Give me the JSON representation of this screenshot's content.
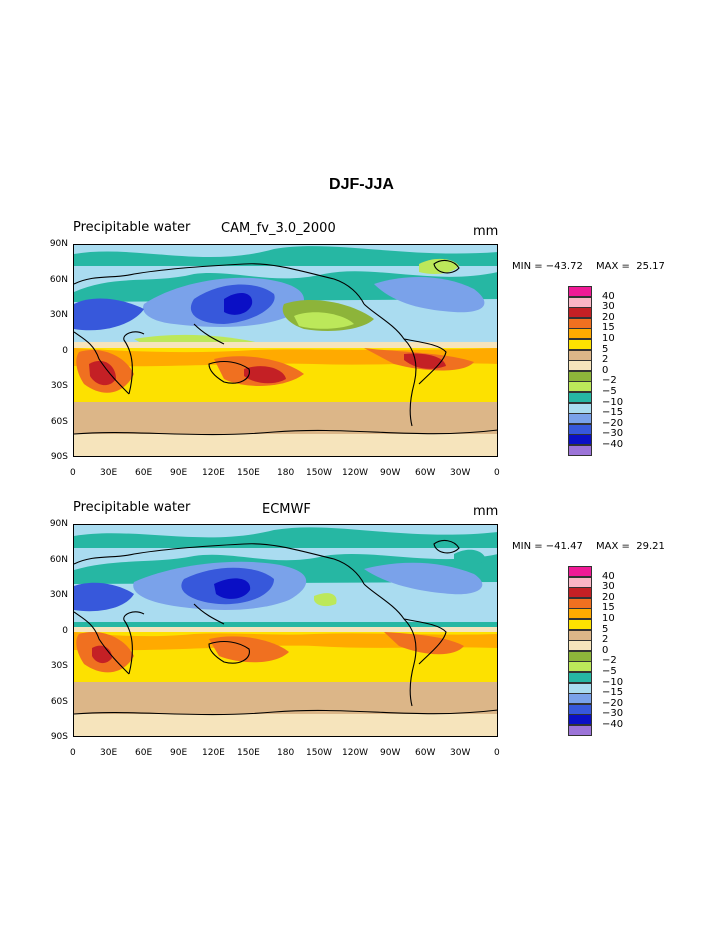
{
  "title": "DJF-JJA",
  "scale_levels": [
    "40",
    "30",
    "20",
    "15",
    "10",
    "5",
    "2",
    "0",
    "−2",
    "−5",
    "−10",
    "−15",
    "−20",
    "−30",
    "−40"
  ],
  "scale_colors": [
    "#f01a96",
    "#fcb6c6",
    "#c42025",
    "#f07020",
    "#ffaa00",
    "#fde100",
    "#dcb688",
    "#f6e4bc",
    "#8db43a",
    "#bce85a",
    "#26b7a3",
    "#aadcf0",
    "#7aa2ea",
    "#3758db",
    "#0a0fc5",
    "#9c74d8"
  ],
  "panels": [
    {
      "left_label": "Precipitable water",
      "center_label": "CAM_fv_3.0_2000",
      "units": "mm",
      "min_label": "MIN = −43.72",
      "max_label": "MAX =  25.17"
    },
    {
      "left_label": "Precipitable water",
      "center_label": "ECMWF",
      "units": "mm",
      "min_label": "MIN = −41.47",
      "max_label": "MAX =  29.21"
    }
  ],
  "x_ticks": [
    "0",
    "30E",
    "60E",
    "90E",
    "120E",
    "150E",
    "180",
    "150W",
    "120W",
    "90W",
    "60W",
    "30W",
    "0"
  ],
  "y_ticks": [
    "90N",
    "60N",
    "30N",
    "0",
    "30S",
    "60S",
    "90S"
  ]
}
